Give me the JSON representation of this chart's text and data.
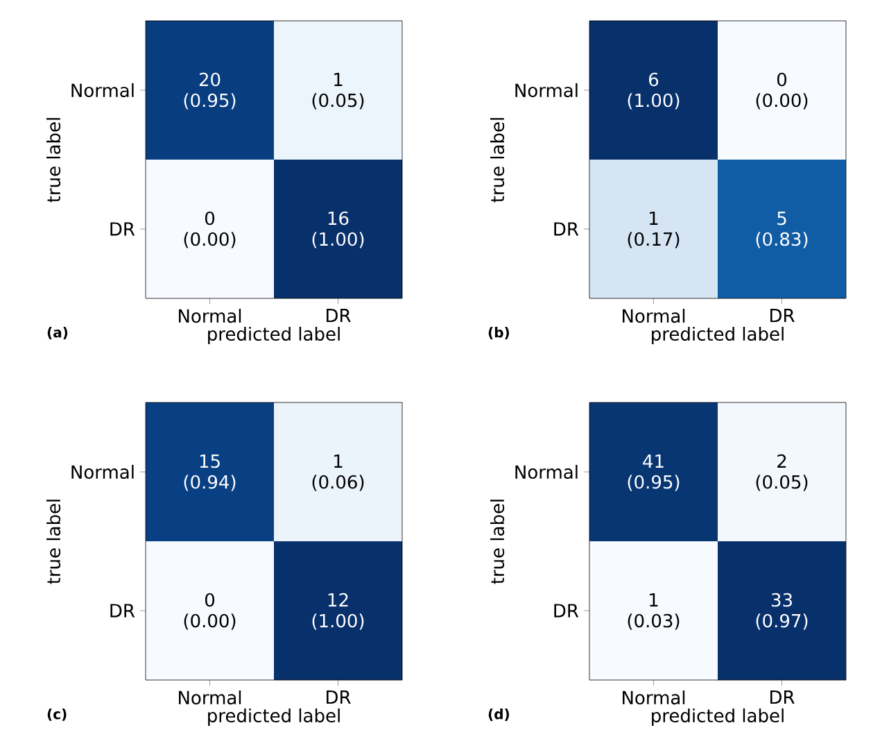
{
  "chart_data": [
    {
      "type": "heatmap",
      "xlabel": "predicted label",
      "ylabel": "true label",
      "categories": [
        "Normal",
        "DR"
      ],
      "y_categories": [
        "Normal",
        "DR"
      ],
      "cells": [
        [
          0.95,
          0.05
        ],
        [
          0.0,
          1.0
        ]
      ],
      "cell_labels": [
        [
          "(0.95)",
          "(0.05)"
        ],
        [
          "(0.00)",
          "(1.00)"
        ]
      ],
      "annotations": [
        "(a)",
        "20",
        "1",
        "0",
        "16"
      ]
    },
    {
      "type": "heatmap",
      "xlabel": "predicted label",
      "ylabel": "true label",
      "categories": [
        "Normal",
        "DR"
      ],
      "y_categories": [
        "Normal",
        "DR"
      ],
      "cells": [
        [
          1.0,
          0.0
        ],
        [
          0.17,
          0.83
        ]
      ],
      "cell_labels": [
        [
          "(1.00)",
          "(0.00)"
        ],
        [
          "(0.17)",
          "(0.83)"
        ]
      ],
      "annotations": [
        "(b)",
        "6",
        "0",
        "1",
        "5"
      ]
    },
    {
      "type": "heatmap",
      "xlabel": "predicted label",
      "ylabel": "true label",
      "categories": [
        "Normal",
        "DR"
      ],
      "y_categories": [
        "Normal",
        "DR"
      ],
      "cells": [
        [
          0.94,
          0.06
        ],
        [
          0.0,
          1.0
        ]
      ],
      "cell_labels": [
        [
          "(0.94)",
          "(0.06)"
        ],
        [
          "(0.00)",
          "(1.00)"
        ]
      ],
      "annotations": [
        "(c)",
        "15",
        "1",
        "0",
        "12"
      ]
    },
    {
      "type": "heatmap",
      "xlabel": "predicted label",
      "ylabel": "true label",
      "categories": [
        "Normal",
        "DR"
      ],
      "y_categories": [
        "Normal",
        "DR"
      ],
      "cells": [
        [
          0.95,
          0.05
        ],
        [
          0.03,
          0.97
        ]
      ],
      "cell_labels": [
        [
          "(0.95)",
          "(0.05)"
        ],
        [
          "(0.03)",
          "(0.97)"
        ]
      ],
      "annotations": [
        "(d)",
        "41",
        "2",
        "1",
        "33"
      ]
    }
  ]
}
